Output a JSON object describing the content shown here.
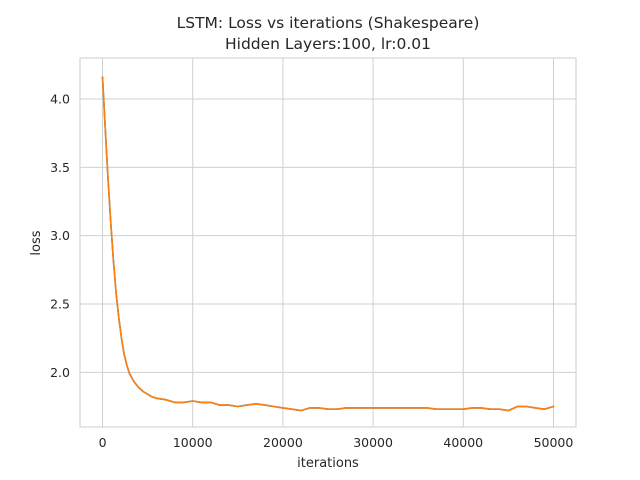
{
  "chart_data": {
    "type": "line",
    "title": "LSTM: Loss vs iterations (Shakespeare)",
    "subtitle": "Hidden Layers:100, lr:0.01",
    "xlabel": "iterations",
    "ylabel": "loss",
    "xlim": [
      -2500,
      52500
    ],
    "ylim": [
      1.6,
      4.3
    ],
    "xticks": [
      0,
      10000,
      20000,
      30000,
      40000,
      50000
    ],
    "yticks": [
      2.0,
      2.5,
      3.0,
      3.5,
      4.0
    ],
    "xtick_labels": [
      "0",
      "10000",
      "20000",
      "30000",
      "40000",
      "50000"
    ],
    "ytick_labels": [
      "2.0",
      "2.5",
      "3.0",
      "3.5",
      "4.0"
    ],
    "grid": true,
    "series": [
      {
        "color": "#1f77b4",
        "x": [
          0,
          300,
          600,
          900,
          1200,
          1500,
          1800,
          2100,
          2400,
          2700,
          3000,
          3500,
          4000,
          4500,
          5000,
          5500,
          6000,
          7000,
          8000,
          9000,
          10000,
          11000,
          12000,
          13000,
          14000,
          15000,
          16000,
          17000,
          18000,
          19000,
          20000,
          21000,
          22000,
          23000,
          24000,
          25000,
          26000,
          27000,
          28000,
          29000,
          30000,
          31000,
          32000,
          33000,
          34000,
          35000,
          36000,
          37000,
          38000,
          39000,
          40000,
          41000,
          42000,
          43000,
          44000,
          45000,
          46000,
          47000,
          48000,
          49000,
          50000
        ],
        "y": [
          4.16,
          3.78,
          3.42,
          3.1,
          2.82,
          2.58,
          2.4,
          2.25,
          2.13,
          2.05,
          1.99,
          1.93,
          1.89,
          1.86,
          1.84,
          1.82,
          1.81,
          1.8,
          1.78,
          1.78,
          1.79,
          1.78,
          1.78,
          1.76,
          1.76,
          1.75,
          1.76,
          1.77,
          1.76,
          1.75,
          1.74,
          1.73,
          1.72,
          1.74,
          1.74,
          1.73,
          1.73,
          1.74,
          1.74,
          1.74,
          1.74,
          1.74,
          1.74,
          1.74,
          1.74,
          1.74,
          1.74,
          1.73,
          1.73,
          1.73,
          1.73,
          1.74,
          1.74,
          1.73,
          1.73,
          1.72,
          1.75,
          1.75,
          1.74,
          1.73,
          1.75
        ]
      },
      {
        "color": "#ff7f0e",
        "x": [
          0,
          300,
          600,
          900,
          1200,
          1500,
          1800,
          2100,
          2400,
          2700,
          3000,
          3500,
          4000,
          4500,
          5000,
          5500,
          6000,
          7000,
          8000,
          9000,
          10000,
          11000,
          12000,
          13000,
          14000,
          15000,
          16000,
          17000,
          18000,
          19000,
          20000,
          21000,
          22000,
          23000,
          24000,
          25000,
          26000,
          27000,
          28000,
          29000,
          30000,
          31000,
          32000,
          33000,
          34000,
          35000,
          36000,
          37000,
          38000,
          39000,
          40000,
          41000,
          42000,
          43000,
          44000,
          45000,
          46000,
          47000,
          48000,
          49000,
          50000
        ],
        "y": [
          4.16,
          3.78,
          3.42,
          3.1,
          2.82,
          2.58,
          2.4,
          2.25,
          2.13,
          2.05,
          1.99,
          1.93,
          1.89,
          1.86,
          1.84,
          1.82,
          1.81,
          1.8,
          1.78,
          1.78,
          1.79,
          1.78,
          1.78,
          1.76,
          1.76,
          1.75,
          1.76,
          1.77,
          1.76,
          1.75,
          1.74,
          1.73,
          1.72,
          1.74,
          1.74,
          1.73,
          1.73,
          1.74,
          1.74,
          1.74,
          1.74,
          1.74,
          1.74,
          1.74,
          1.74,
          1.74,
          1.74,
          1.73,
          1.73,
          1.73,
          1.73,
          1.74,
          1.74,
          1.73,
          1.73,
          1.72,
          1.75,
          1.75,
          1.74,
          1.73,
          1.75
        ]
      }
    ]
  }
}
